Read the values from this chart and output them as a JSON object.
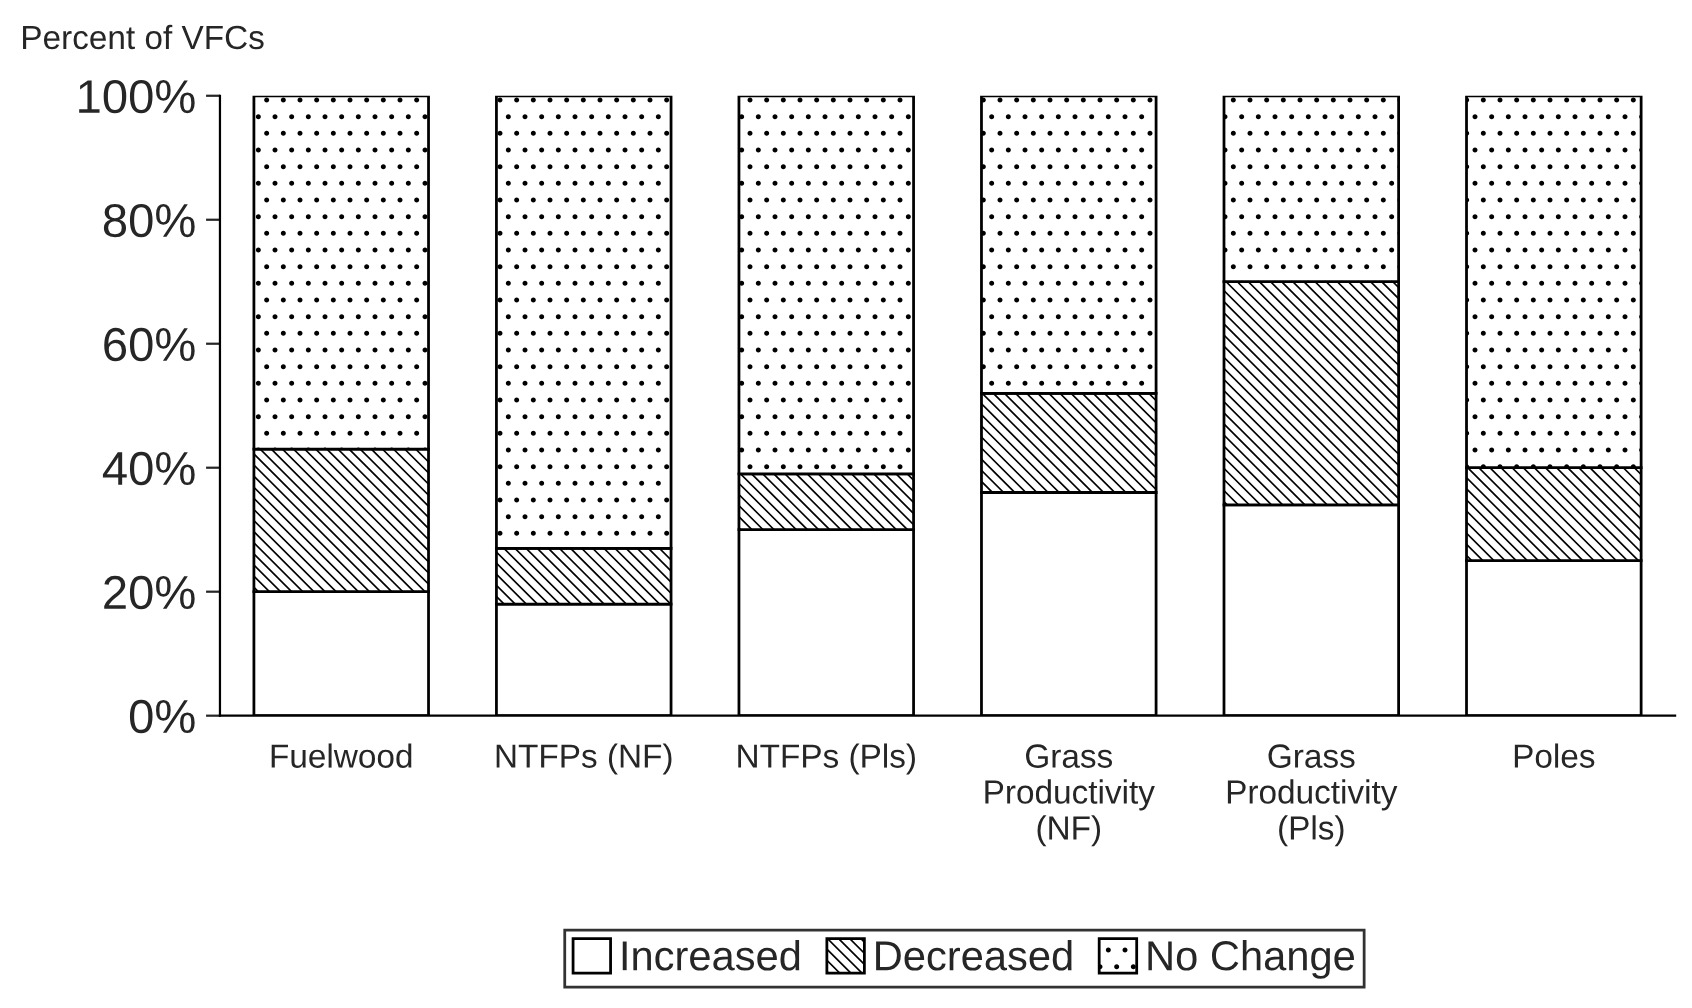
{
  "chart_data": {
    "type": "bar",
    "stacked": true,
    "ylabel": "Percent of VFCs",
    "categories": [
      "Fuelwood",
      "NTFPs (NF)",
      "NTFPs (Pls)",
      "Grass\nProductivity\n(NF)",
      "Grass\nProductivity\n(Pls)",
      "Poles"
    ],
    "series": [
      {
        "name": "Increased",
        "color": "#ffffff",
        "values": [
          20,
          18,
          30,
          36,
          34,
          25
        ]
      },
      {
        "name": "Decreased",
        "color": "#000000",
        "values": [
          23,
          9,
          9,
          16,
          36,
          15
        ]
      },
      {
        "name": "No Change",
        "color": "#000000",
        "values": [
          57,
          73,
          61,
          48,
          30,
          60
        ]
      }
    ],
    "ylim": [
      0,
      100
    ],
    "yticks": [
      {
        "value": 0,
        "label": "0%"
      },
      {
        "value": 20,
        "label": "20%"
      },
      {
        "value": 40,
        "label": "40%"
      },
      {
        "value": 60,
        "label": "60%"
      },
      {
        "value": 80,
        "label": "80%"
      },
      {
        "value": 100,
        "label": "100%"
      }
    ],
    "grid": false,
    "legend": "bottom"
  }
}
